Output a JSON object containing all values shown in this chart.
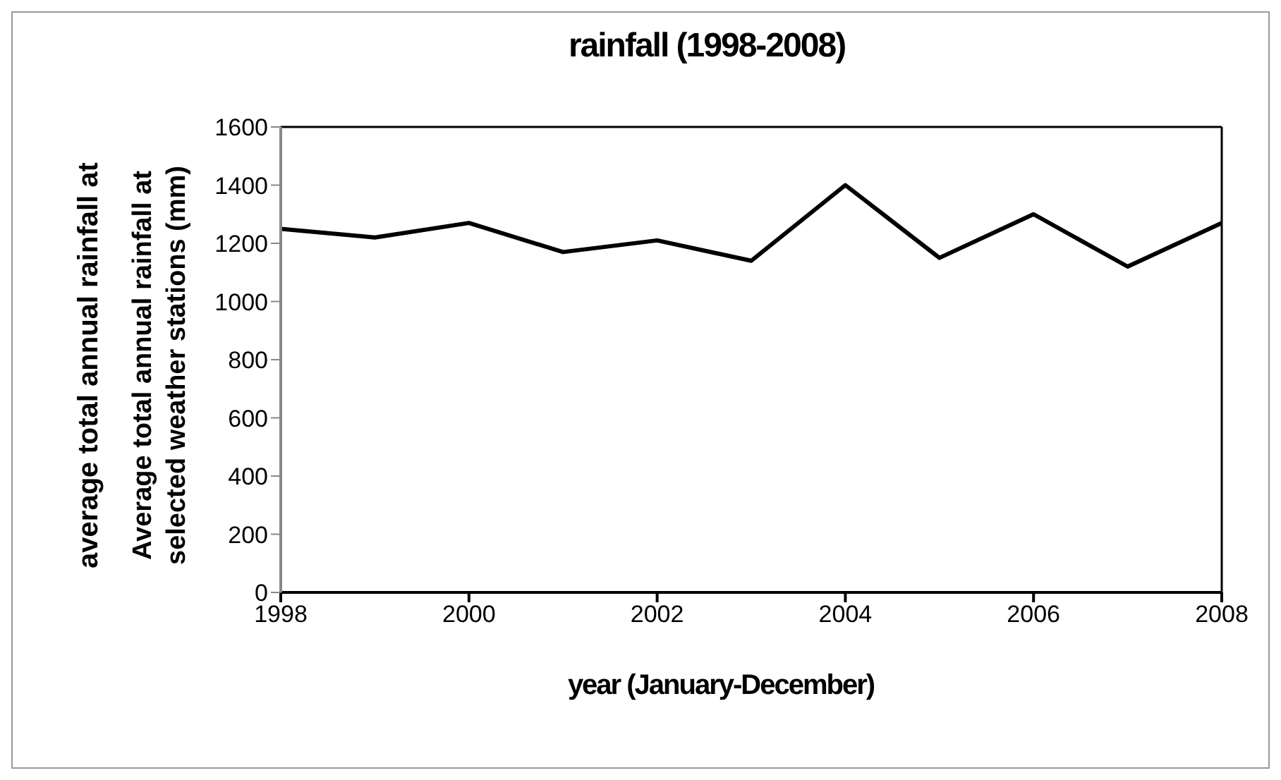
{
  "chart_data": {
    "type": "line",
    "title": "rainfall (1998-2008)",
    "xlabel": "year (January-December)",
    "ylabel": "Average total annual rainfall at selected weather stations (mm)",
    "annotations": [
      "average total annual rainfall at"
    ],
    "x": [
      1998,
      1999,
      2000,
      2001,
      2002,
      2003,
      2004,
      2005,
      2006,
      2007,
      2008
    ],
    "series": [
      {
        "color": "#000000",
        "values": [
          1250,
          1220,
          1270,
          1170,
          1210,
          1140,
          1400,
          1150,
          1300,
          1120,
          1270
        ]
      }
    ],
    "xlim": [
      1998,
      2008
    ],
    "xticks": [
      1998,
      2000,
      2002,
      2004,
      2006,
      2008
    ],
    "ylim": [
      0,
      1600
    ],
    "yticks": [
      0,
      200,
      400,
      600,
      800,
      1000,
      1200,
      1400,
      1600
    ]
  }
}
